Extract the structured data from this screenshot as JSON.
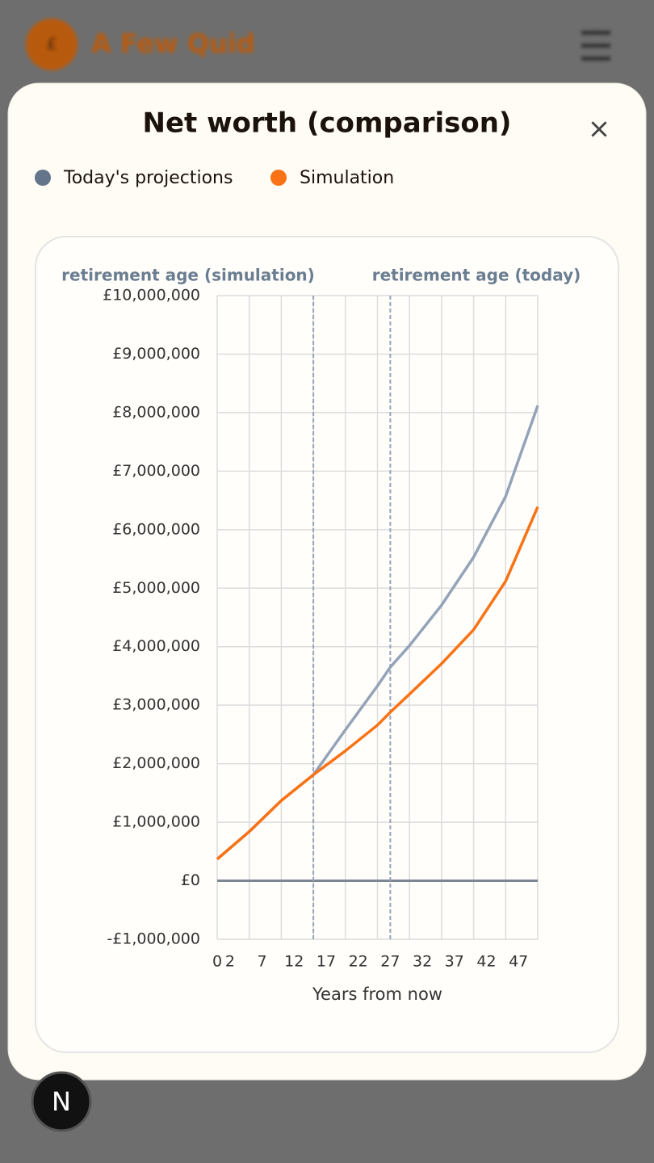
{
  "header": {
    "logo": "£",
    "brand": "A Few Quid"
  },
  "modal": {
    "title": "Net worth (comparison)",
    "close": "×"
  },
  "dev_badge": "N",
  "chart_data": {
    "type": "line",
    "x": [
      0,
      5,
      10,
      15,
      20,
      25,
      27,
      30,
      35,
      40,
      45,
      50
    ],
    "series": [
      {
        "name": "Today's projections",
        "color": "#94a3b8",
        "legend_color": "#64748b",
        "values": [
          0.37,
          0.84,
          1.37,
          1.81,
          2.58,
          3.33,
          3.65,
          4.02,
          4.71,
          5.53,
          6.57,
          8.12
        ]
      },
      {
        "name": "Simulation",
        "color": "#f97316",
        "legend_color": "#f97316",
        "values": [
          0.37,
          0.84,
          1.37,
          1.81,
          2.22,
          2.66,
          2.88,
          3.19,
          3.71,
          4.29,
          5.12,
          6.39
        ]
      }
    ],
    "xlim": [
      0,
      50
    ],
    "xticks": [
      0,
      2,
      7,
      12,
      17,
      22,
      27,
      32,
      37,
      42,
      47
    ],
    "xgrid": [
      0,
      5,
      10,
      15,
      20,
      25,
      30,
      35,
      40,
      45,
      50
    ],
    "ylim": [
      -1,
      10
    ],
    "yticks": [
      {
        "value": -1,
        "label": "-£1,000,000"
      },
      {
        "value": 0,
        "label": "£0"
      },
      {
        "value": 1,
        "label": "£1,000,000"
      },
      {
        "value": 2,
        "label": "£2,000,000"
      },
      {
        "value": 3,
        "label": "£3,000,000"
      },
      {
        "value": 4,
        "label": "£4,000,000"
      },
      {
        "value": 5,
        "label": "£5,000,000"
      },
      {
        "value": 6,
        "label": "£6,000,000"
      },
      {
        "value": 7,
        "label": "£7,000,000"
      },
      {
        "value": 8,
        "label": "£8,000,000"
      },
      {
        "value": 9,
        "label": "£9,000,000"
      },
      {
        "value": 10,
        "label": "£10,000,000"
      }
    ],
    "xlabel": "Years from now",
    "annotations": [
      {
        "label": "retirement age (simulation)",
        "x": 15
      },
      {
        "label": "retirement age (today)",
        "x": 27
      }
    ],
    "grid": true
  }
}
